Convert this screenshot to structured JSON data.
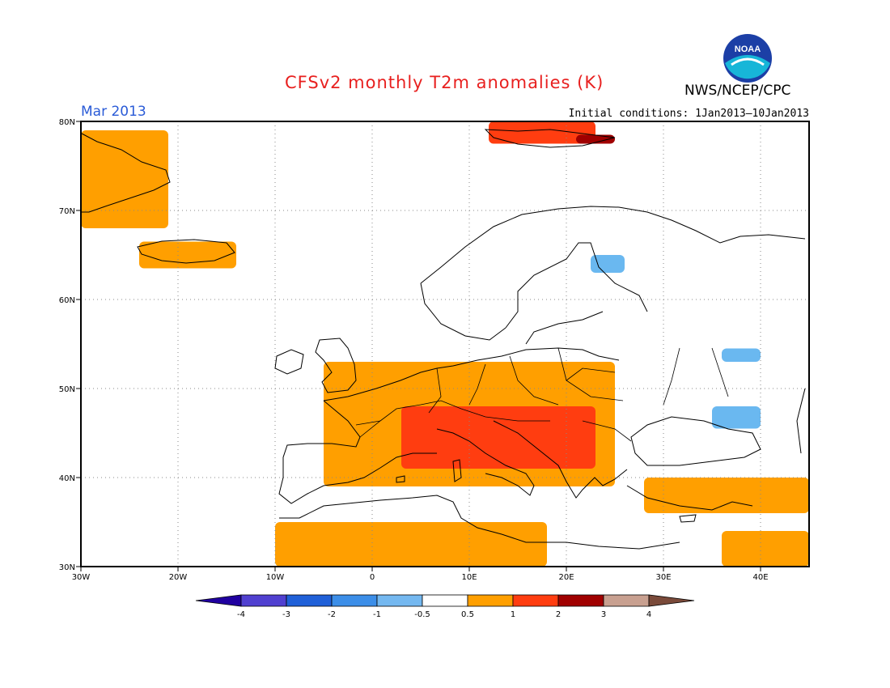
{
  "header": {
    "title": "CFSv2 monthly T2m anomalies (K)",
    "org": "NWS/NCEP/CPC",
    "month": "Mar 2013",
    "initial_conditions": "Initial conditions: 1Jan2013–10Jan2013",
    "logo_text": "NOAA"
  },
  "map": {
    "lon_range": [
      -30,
      45
    ],
    "lat_range": [
      30,
      80
    ],
    "lat_labels": [
      "80N",
      "70N",
      "60N",
      "50N",
      "40N",
      "30N"
    ],
    "lon_labels": [
      "30W",
      "20W",
      "10W",
      "0",
      "10E",
      "20E",
      "30E",
      "40E"
    ],
    "region_colors": {
      "warm1": "#ff9f00",
      "warm2": "#ff3d10",
      "warm3": "#a00000",
      "cool1": "#6ab8f0"
    },
    "anomaly_regions": [
      {
        "level": "warm1",
        "area": "Greenland",
        "lon": [
          -30,
          -21
        ],
        "lat": [
          68,
          79
        ]
      },
      {
        "level": "warm1",
        "area": "Iceland",
        "lon": [
          -24,
          -14
        ],
        "lat": [
          63.5,
          66.5
        ]
      },
      {
        "level": "warm1",
        "area": "Central/Western Europe",
        "lon": [
          -5,
          25
        ],
        "lat": [
          39,
          53
        ]
      },
      {
        "level": "warm2",
        "area": "Alps/Balkans",
        "lon": [
          3,
          23
        ],
        "lat": [
          41,
          48
        ]
      },
      {
        "level": "warm1",
        "area": "North Africa",
        "lon": [
          -10,
          18
        ],
        "lat": [
          30,
          35
        ]
      },
      {
        "level": "warm1",
        "area": "Anatolia",
        "lon": [
          28,
          45
        ],
        "lat": [
          36,
          40
        ]
      },
      {
        "level": "warm1",
        "area": "Middle East",
        "lon": [
          36,
          45
        ],
        "lat": [
          30,
          34
        ]
      },
      {
        "level": "warm2",
        "area": "Svalbard",
        "lon": [
          12,
          23
        ],
        "lat": [
          77.5,
          80
        ]
      },
      {
        "level": "warm3",
        "area": "Svalbard east",
        "lon": [
          21,
          25
        ],
        "lat": [
          77.5,
          78.5
        ]
      },
      {
        "level": "cool1",
        "area": "Finland",
        "lon": [
          22.5,
          26
        ],
        "lat": [
          63,
          65
        ]
      },
      {
        "level": "cool1",
        "area": "Crimea",
        "lon": [
          35,
          40
        ],
        "lat": [
          45.5,
          48
        ]
      },
      {
        "level": "cool1",
        "area": "Russia",
        "lon": [
          36,
          40
        ],
        "lat": [
          53,
          54.5
        ]
      }
    ]
  },
  "legend": {
    "colors": [
      "#2000a0",
      "#5040d0",
      "#2060d8",
      "#3c8ee8",
      "#74b8f0",
      "#ffffff",
      "#ff9f00",
      "#ff3d10",
      "#a00000",
      "#c8a090",
      "#7a4a3a"
    ],
    "labels": [
      "-4",
      "-3",
      "-2",
      "-1",
      "-0.5",
      "0.5",
      "1",
      "2",
      "3",
      "4"
    ]
  }
}
